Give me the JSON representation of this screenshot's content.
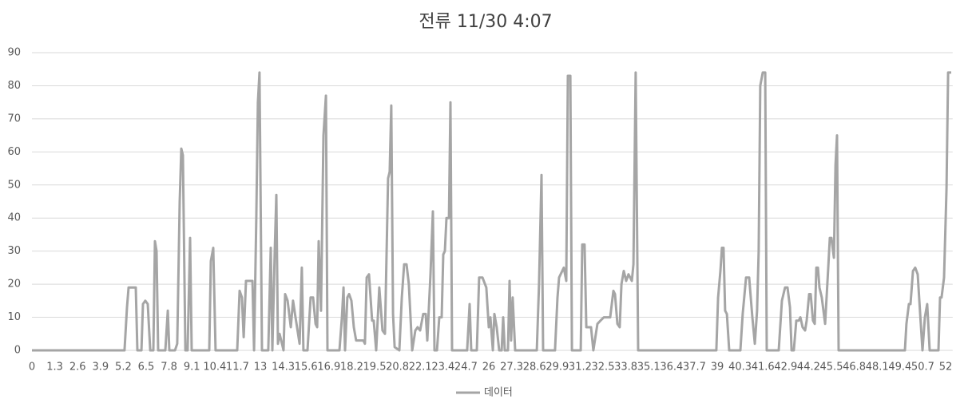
{
  "chart_data": {
    "type": "line",
    "title": "전류 11/30 4:07",
    "xlim": [
      0,
      52.4
    ],
    "xticks": [
      0,
      1.3,
      2.6,
      3.9,
      5.2,
      6.5,
      7.8,
      9.1,
      10.4,
      11.7,
      13,
      14.3,
      15.6,
      16.9,
      18.2,
      19.5,
      20.8,
      22.1,
      23.4,
      24.7,
      26,
      27.3,
      28.6,
      29.9,
      31.2,
      32.5,
      33.8,
      35.1,
      36.4,
      37.7,
      39,
      40.3,
      41.6,
      42.9,
      44.2,
      45.5,
      46.8,
      48.1,
      49.4,
      50.7,
      52
    ],
    "ylim": [
      0,
      90
    ],
    "yticks": [
      0,
      10,
      20,
      30,
      40,
      50,
      60,
      70,
      80,
      90
    ],
    "grid": true,
    "legend": "bottom",
    "x": [
      0,
      5.27,
      5.41,
      5.5,
      5.91,
      6.0,
      6.23,
      6.32,
      6.45,
      6.59,
      6.73,
      6.91,
      7.0,
      7.09,
      7.18,
      7.59,
      7.73,
      7.82,
      8.14,
      8.27,
      8.41,
      8.5,
      8.59,
      8.73,
      8.86,
      9.0,
      9.09,
      10.09,
      10.18,
      10.32,
      10.45,
      11.68,
      11.82,
      11.95,
      12.05,
      12.18,
      12.55,
      12.64,
      12.77,
      12.86,
      12.95,
      13.09,
      13.45,
      13.59,
      13.68,
      13.82,
      13.91,
      14.0,
      14.09,
      14.23,
      14.32,
      14.41,
      14.55,
      14.73,
      14.86,
      15.0,
      15.23,
      15.36,
      15.45,
      15.68,
      15.86,
      16.0,
      16.14,
      16.23,
      16.32,
      16.45,
      16.59,
      16.73,
      16.82,
      17.5,
      17.64,
      17.73,
      17.82,
      17.95,
      18.05,
      18.18,
      18.32,
      18.45,
      18.86,
      18.95,
      19.05,
      19.18,
      19.36,
      19.45,
      19.59,
      19.77,
      19.95,
      20.09,
      20.27,
      20.36,
      20.45,
      20.55,
      20.64,
      20.91,
      21.05,
      21.18,
      21.32,
      21.45,
      21.64,
      21.82,
      21.95,
      22.09,
      22.27,
      22.41,
      22.5,
      22.68,
      22.82,
      22.91,
      23.05,
      23.18,
      23.32,
      23.41,
      23.5,
      23.59,
      23.73,
      23.82,
      23.91,
      24.77,
      24.91,
      25.0,
      25.32,
      25.45,
      25.64,
      25.86,
      26.0,
      26.09,
      26.23,
      26.32,
      26.45,
      26.59,
      26.73,
      26.82,
      26.91,
      27.09,
      27.18,
      27.27,
      27.36,
      27.5,
      28.73,
      28.86,
      29.0,
      29.09,
      29.77,
      29.91,
      30.0,
      30.27,
      30.41,
      30.5,
      30.64,
      30.73,
      31.23,
      31.32,
      31.45,
      31.55,
      31.82,
      31.95,
      32.18,
      32.36,
      32.55,
      32.91,
      33.09,
      33.18,
      33.32,
      33.45,
      33.55,
      33.68,
      33.82,
      33.95,
      34.05,
      34.14,
      34.23,
      34.36,
      34.5,
      38.95,
      39.05,
      39.18,
      39.27,
      39.36,
      39.45,
      39.55,
      39.68,
      40.32,
      40.45,
      40.64,
      40.82,
      41.0,
      41.14,
      41.27,
      41.36,
      41.45,
      41.59,
      41.73,
      41.82,
      42.5,
      42.68,
      42.86,
      43.0,
      43.14,
      43.23,
      43.36,
      43.5,
      43.64,
      43.73,
      43.86,
      44.0,
      44.09,
      44.23,
      44.32,
      44.45,
      44.55,
      44.64,
      44.73,
      44.82,
      44.95,
      45.14,
      45.32,
      45.41,
      45.5,
      45.64,
      45.73,
      45.82,
      45.91,
      49.68,
      49.77,
      49.91,
      50.0,
      50.14,
      50.27,
      50.41,
      50.55,
      50.68,
      50.82,
      50.95,
      51.09,
      51.59,
      51.68,
      51.77,
      51.91,
      52.05,
      52.14,
      52.32
    ],
    "series": [
      {
        "name": "데이터",
        "color": "#a5a5a5",
        "values": [
          0,
          0,
          13,
          19,
          19,
          0,
          0,
          14,
          15,
          14,
          0,
          0,
          33,
          30,
          0,
          0,
          12,
          0,
          0,
          2,
          45,
          61,
          59,
          0,
          0,
          34,
          0,
          0,
          27,
          31,
          0,
          0,
          18,
          16,
          4,
          21,
          21,
          0,
          40,
          75,
          84,
          0,
          0,
          31,
          0,
          30,
          47,
          2,
          5,
          2,
          0,
          17,
          15,
          7,
          15,
          10,
          2,
          25,
          0,
          0,
          16,
          16,
          8,
          7,
          33,
          12,
          65,
          77,
          0,
          0,
          10,
          19,
          0,
          16,
          17,
          15,
          7,
          3,
          3,
          2,
          22,
          23,
          9,
          9,
          0,
          19,
          6,
          5,
          52,
          54,
          74,
          11,
          1,
          0,
          16,
          26,
          26,
          20,
          0,
          6,
          7,
          6,
          11,
          11,
          3,
          23,
          42,
          0,
          0,
          10,
          10,
          29,
          30,
          40,
          40,
          75,
          0,
          0,
          14,
          0,
          0,
          22,
          22,
          19,
          7,
          10,
          0,
          11,
          7,
          0,
          0,
          10,
          0,
          0,
          21,
          3,
          16,
          0,
          0,
          20,
          53,
          0,
          0,
          16,
          22,
          25,
          21,
          83,
          83,
          0,
          0,
          32,
          32,
          7,
          7,
          0,
          8,
          9,
          10,
          10,
          18,
          17,
          8,
          7,
          20,
          24,
          21,
          23,
          22,
          21,
          26,
          84,
          0,
          0,
          16,
          24,
          31,
          31,
          12,
          11,
          0,
          0,
          11,
          22,
          22,
          10,
          2,
          12,
          30,
          80,
          84,
          84,
          0,
          0,
          15,
          19,
          19,
          13,
          0,
          0,
          9,
          9,
          10,
          7,
          6,
          9,
          17,
          17,
          9,
          8,
          25,
          25,
          19,
          16,
          8,
          25,
          34,
          34,
          28,
          56,
          65,
          0,
          0,
          8,
          14,
          14,
          24,
          25,
          23,
          11,
          0,
          10,
          14,
          0,
          0,
          16,
          16,
          22,
          49,
          84,
          84
        ]
      }
    ]
  }
}
